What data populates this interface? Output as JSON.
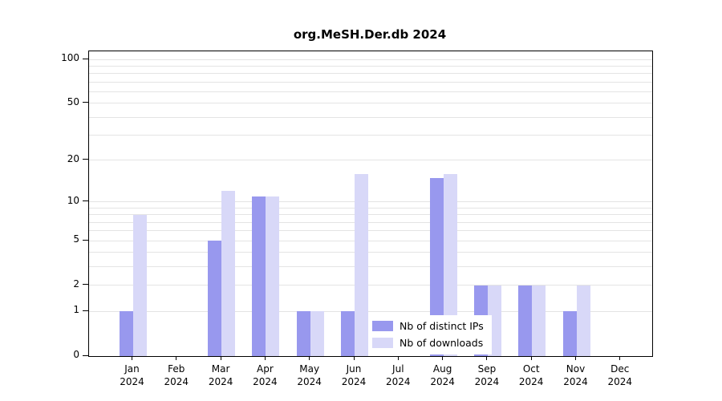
{
  "title": "org.MeSH.Der.db 2024",
  "chart_data": {
    "type": "bar",
    "title": "org.MeSH.Der.db 2024",
    "categories": [
      "Jan",
      "Feb",
      "Mar",
      "Apr",
      "May",
      "Jun",
      "Jul",
      "Aug",
      "Sep",
      "Oct",
      "Nov",
      "Dec"
    ],
    "year_label": "2024",
    "series": [
      {
        "name": "Nb of distinct IPs",
        "color": "#9898ee",
        "values": [
          1,
          0,
          5,
          11,
          1,
          1,
          0,
          15,
          2,
          2,
          1,
          0
        ]
      },
      {
        "name": "Nb of downloads",
        "color": "#d8d8f8",
        "values": [
          8,
          0,
          12,
          11,
          1,
          16,
          0,
          16,
          2,
          2,
          2,
          0
        ]
      }
    ],
    "xlabel": "",
    "ylabel": "",
    "y_ticks": [
      0,
      1,
      2,
      5,
      10,
      20,
      50,
      100
    ],
    "y_minor_gridlines": [
      3,
      4,
      6,
      7,
      8,
      9,
      30,
      40,
      60,
      70,
      80,
      90
    ],
    "y_scale": "log10(value+1), zero at baseline",
    "ylim": [
      0,
      110
    ],
    "grid": true,
    "legend_position": "bottom-center-inside",
    "grid_color": "#e4e4e4",
    "axis_color": "#000000"
  }
}
